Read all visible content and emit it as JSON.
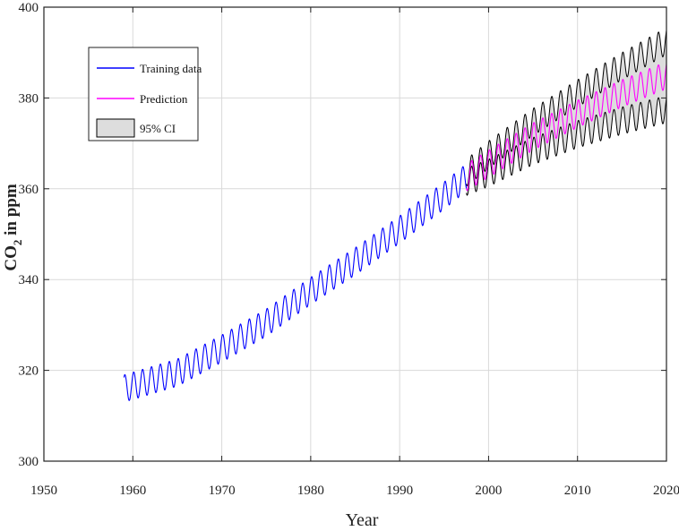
{
  "chart_data": {
    "type": "line",
    "title": "",
    "xlabel": "Year",
    "ylabel": {
      "main": "CO",
      "subscript": "2",
      "rest": " in ppm"
    },
    "xlim": [
      1950,
      2020
    ],
    "ylim": [
      300,
      400
    ],
    "xticks": [
      1950,
      1960,
      1970,
      1980,
      1990,
      2000,
      2010,
      2020
    ],
    "yticks": [
      300,
      320,
      340,
      360,
      380,
      400
    ],
    "grid": true,
    "legend_position": "top-left",
    "seasonal_cycle": {
      "amplitude_ppm": 3,
      "period_years": 1
    },
    "series": [
      {
        "name": "Training data",
        "color": "#0000ff",
        "x_range": [
          1959,
          1997.5
        ],
        "trend_points": [
          [
            1959,
            316
          ],
          [
            1965,
            319.5
          ],
          [
            1970,
            324.8
          ],
          [
            1975,
            330.5
          ],
          [
            1980,
            337.5
          ],
          [
            1985,
            344
          ],
          [
            1990,
            351
          ],
          [
            1995,
            358.5
          ],
          [
            1997.5,
            362.5
          ]
        ]
      },
      {
        "name": "Prediction",
        "color": "#ff00ff",
        "x_range": [
          1997.5,
          2020
        ],
        "trend_points": [
          [
            1997.5,
            362.5
          ],
          [
            2000,
            365.5
          ],
          [
            2005,
            371.5
          ],
          [
            2010,
            376.5
          ],
          [
            2015,
            381
          ],
          [
            2020,
            385
          ]
        ]
      },
      {
        "name": "95% CI",
        "color": "#000000",
        "fill": "#dddddd",
        "x_range": [
          1997.5,
          2020
        ],
        "halfwidth_points": [
          [
            1997.5,
            1
          ],
          [
            2000,
            2
          ],
          [
            2005,
            3.2
          ],
          [
            2010,
            4.5
          ],
          [
            2015,
            6
          ],
          [
            2020,
            7.5
          ]
        ]
      }
    ]
  }
}
